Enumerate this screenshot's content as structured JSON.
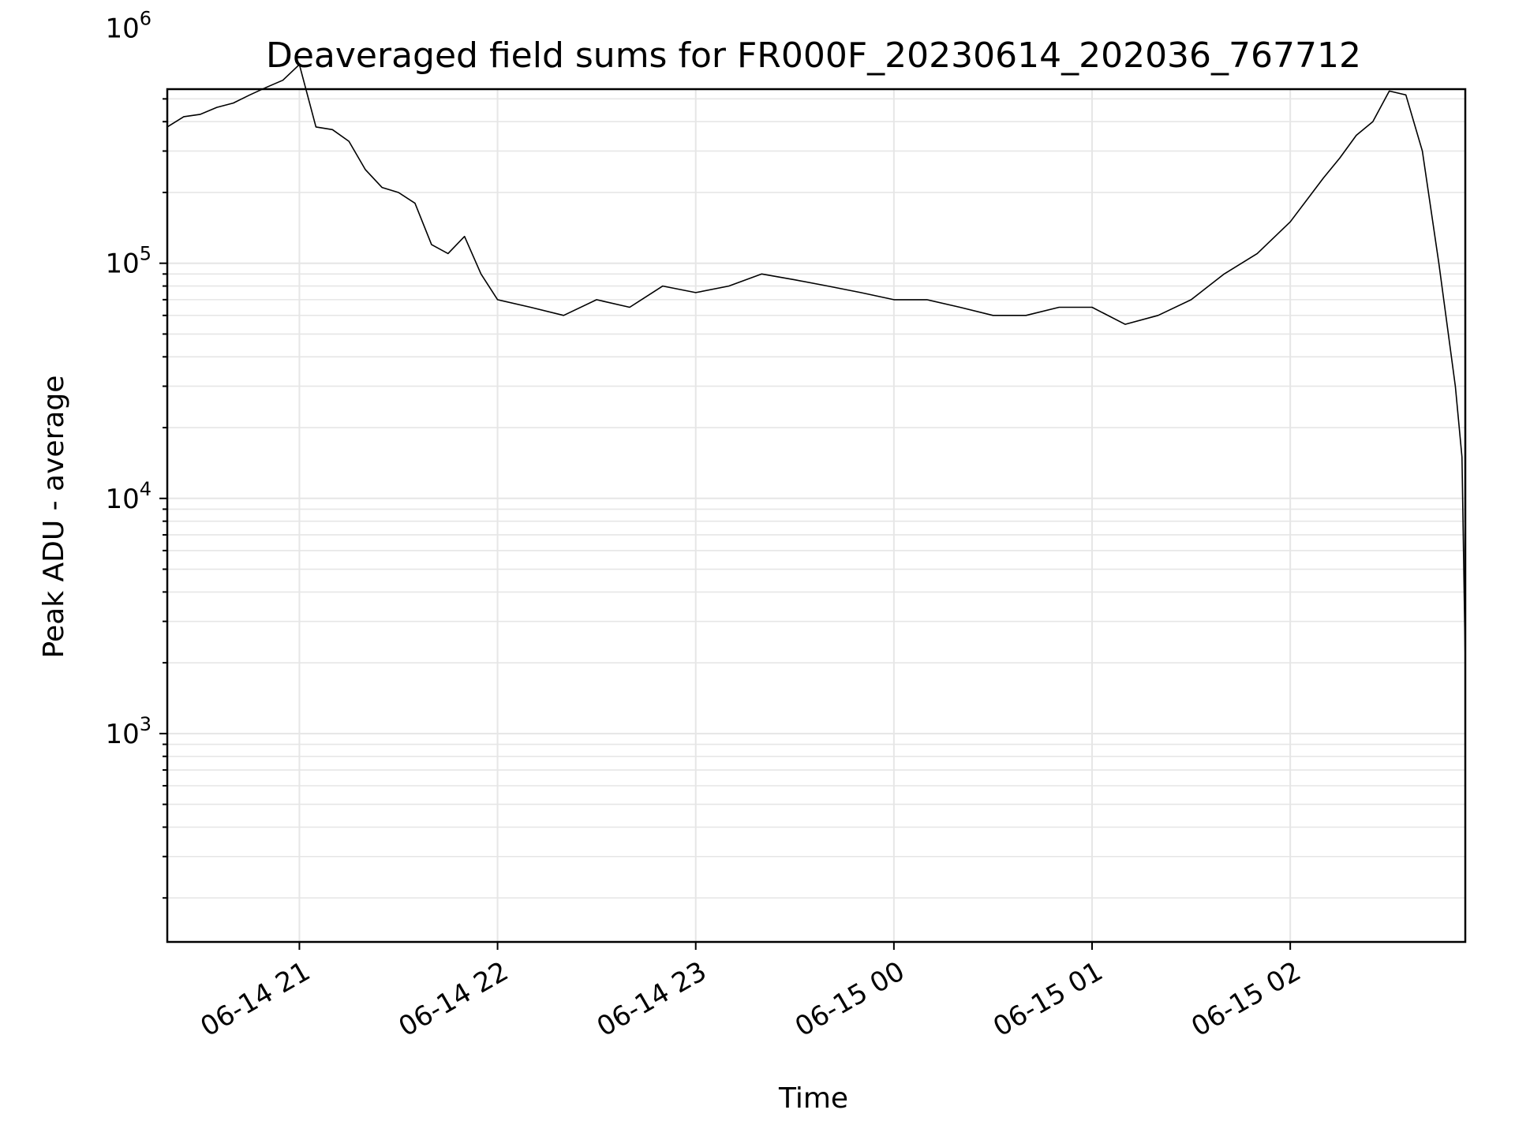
{
  "chart_data": {
    "type": "line",
    "title": "Deaveraged field sums for FR000F_20230614_202036_767712",
    "xlabel": "Time",
    "ylabel": "Peak ADU - average",
    "yscale": "log",
    "ylim": [
      130,
      550000
    ],
    "grid": true,
    "x_tick_labels": [
      "06-14 21",
      "06-14 22",
      "06-14 23",
      "06-15 00",
      "06-15 01",
      "06-15 02"
    ],
    "x_tick_times": [
      "2023-06-14 21:00",
      "2023-06-14 22:00",
      "2023-06-14 23:00",
      "2023-06-15 00:00",
      "2023-06-15 01:00",
      "2023-06-15 02:00"
    ],
    "xlim": [
      "2023-06-14 20:20",
      "2023-06-15 02:53"
    ],
    "y_ticks": [
      {
        "value": 1000,
        "base": "10",
        "exp": "3"
      },
      {
        "value": 10000,
        "base": "10",
        "exp": "4"
      },
      {
        "value": 100000,
        "base": "10",
        "exp": "5"
      },
      {
        "value": 1000000,
        "base": "10",
        "exp": "6"
      }
    ],
    "line_color": "#000000",
    "grid_color": "#e6e6e6",
    "series": [
      {
        "time": [
          "2023-06-14 20:20",
          "2023-06-14 20:25",
          "2023-06-14 20:30",
          "2023-06-14 20:35",
          "2023-06-14 20:40",
          "2023-06-14 20:45",
          "2023-06-14 20:50",
          "2023-06-14 20:55",
          "2023-06-14 21:00",
          "2023-06-14 21:05",
          "2023-06-14 21:10",
          "2023-06-14 21:15",
          "2023-06-14 21:20",
          "2023-06-14 21:25",
          "2023-06-14 21:30",
          "2023-06-14 21:35",
          "2023-06-14 21:40",
          "2023-06-14 21:45",
          "2023-06-14 21:50",
          "2023-06-14 21:55",
          "2023-06-14 22:00",
          "2023-06-14 22:10",
          "2023-06-14 22:20",
          "2023-06-14 22:30",
          "2023-06-14 22:40",
          "2023-06-14 22:50",
          "2023-06-14 23:00",
          "2023-06-14 23:10",
          "2023-06-14 23:20",
          "2023-06-14 23:30",
          "2023-06-14 23:40",
          "2023-06-14 23:50",
          "2023-06-15 00:00",
          "2023-06-15 00:10",
          "2023-06-15 00:20",
          "2023-06-15 00:30",
          "2023-06-15 00:40",
          "2023-06-15 00:50",
          "2023-06-15 01:00",
          "2023-06-15 01:10",
          "2023-06-15 01:20",
          "2023-06-15 01:30",
          "2023-06-15 01:40",
          "2023-06-15 01:50",
          "2023-06-15 02:00",
          "2023-06-15 02:10",
          "2023-06-15 02:15",
          "2023-06-15 02:20",
          "2023-06-15 02:25",
          "2023-06-15 02:30",
          "2023-06-15 02:35",
          "2023-06-15 02:40",
          "2023-06-15 02:45",
          "2023-06-15 02:50",
          "2023-06-15 02:52",
          "2023-06-15 02:53"
        ],
        "values": [
          380000,
          420000,
          430000,
          460000,
          480000,
          520000,
          560000,
          600000,
          700000,
          380000,
          370000,
          330000,
          250000,
          210000,
          200000,
          180000,
          120000,
          110000,
          130000,
          90000,
          70000,
          65000,
          60000,
          70000,
          65000,
          80000,
          75000,
          80000,
          90000,
          85000,
          80000,
          75000,
          70000,
          70000,
          65000,
          60000,
          60000,
          65000,
          65000,
          55000,
          60000,
          70000,
          90000,
          110000,
          150000,
          230000,
          280000,
          350000,
          400000,
          540000,
          520000,
          300000,
          100000,
          30000,
          15000,
          2000
        ]
      }
    ]
  }
}
